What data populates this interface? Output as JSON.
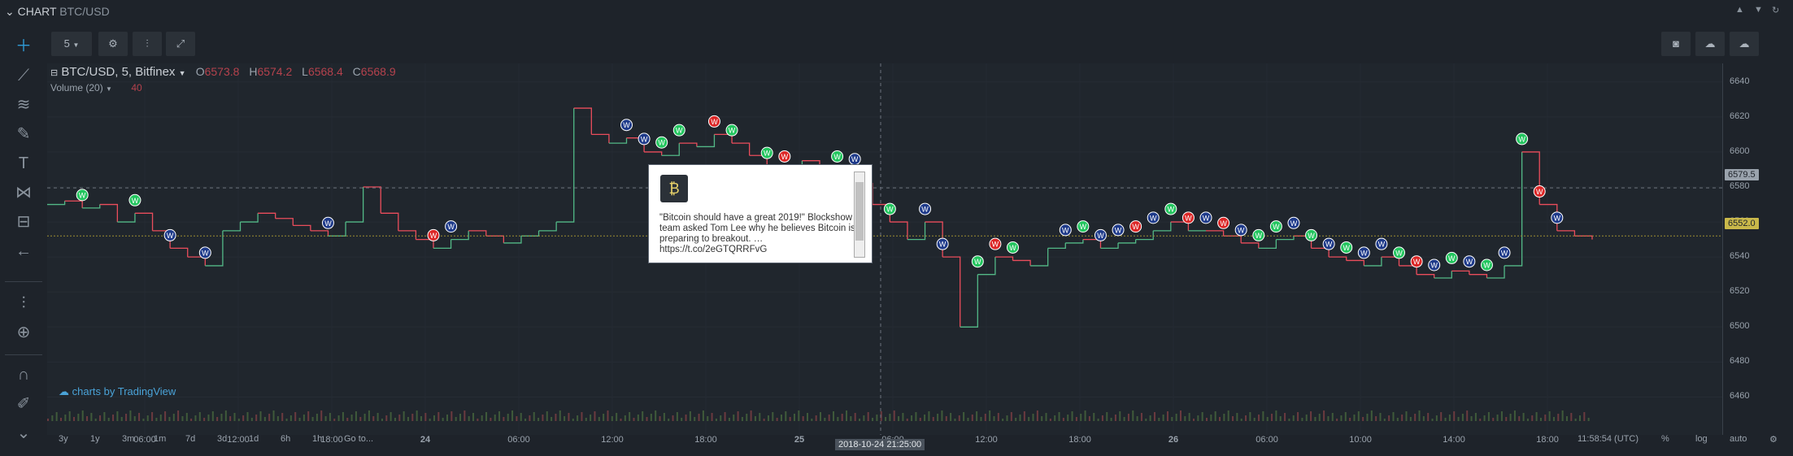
{
  "window": {
    "title": "CHART",
    "pair": "BTC/USD"
  },
  "toolbar": {
    "interval": "5"
  },
  "legend": {
    "symbol": "BTC/USD, 5, Bitfinex",
    "o_label": "O",
    "o": "6573.8",
    "h_label": "H",
    "h": "6574.2",
    "l_label": "L",
    "l": "6568.4",
    "c_label": "C",
    "c": "6568.9",
    "volume_label": "Volume (20)",
    "volume_value": "40"
  },
  "tooltip": {
    "text": "\"Bitcoin should have a great 2019!\" Blockshow team asked Tom Lee why he believes Bitcoin is preparing to breakout. … https://t.co/2eGTQRRFvG"
  },
  "watermark": "charts by TradingView",
  "crosshair": {
    "date_label": "2018-10-24 21:25:00",
    "price_label": "6579.5"
  },
  "last_price_label": "6552.0",
  "bottom": {
    "ranges": [
      "3y",
      "1y",
      "3m",
      "1m",
      "7d",
      "3d",
      "1d",
      "6h",
      "1h",
      "Go to..."
    ],
    "clock": "11:58:54 (UTC)",
    "pct": "%",
    "log": "log",
    "auto": "auto"
  },
  "colors": {
    "up": "#53b987",
    "down": "#eb4d5c",
    "marker_green": "#22c55e",
    "marker_red": "#dc2626",
    "marker_blue": "#1e3a8a",
    "accent": "#2f9bd6"
  },
  "chart_data": {
    "type": "line",
    "title": "BTC/USD, 5, Bitfinex",
    "y_ticks": [
      6640,
      6620,
      6600,
      6580,
      6560,
      6540,
      6520,
      6500,
      6480,
      6460
    ],
    "ylim": [
      6450,
      6645
    ],
    "x_ticks": [
      "06:00",
      "12:00",
      "18:00",
      "24",
      "06:00",
      "12:00",
      "18:00",
      "25",
      "06:00",
      "12:00",
      "18:00",
      "26",
      "06:00",
      "10:00",
      "14:00",
      "18:00"
    ],
    "series": [
      {
        "name": "BTC/USD",
        "values": [
          6570,
          6572,
          6568,
          6570,
          6560,
          6565,
          6555,
          6545,
          6540,
          6535,
          6555,
          6560,
          6565,
          6562,
          6558,
          6555,
          6552,
          6560,
          6580,
          6565,
          6555,
          6550,
          6545,
          6550,
          6555,
          6552,
          6548,
          6552,
          6555,
          6560,
          6625,
          6610,
          6605,
          6608,
          6600,
          6598,
          6605,
          6603,
          6610,
          6605,
          6598,
          6592,
          6590,
          6595,
          6580,
          6590,
          6582,
          6570,
          6560,
          6550,
          6560,
          6540,
          6500,
          6530,
          6540,
          6538,
          6535,
          6545,
          6548,
          6550,
          6545,
          6548,
          6550,
          6555,
          6560,
          6555,
          6555,
          6552,
          6548,
          6545,
          6550,
          6552,
          6545,
          6540,
          6538,
          6535,
          6540,
          6535,
          6530,
          6528,
          6532,
          6530,
          6528,
          6535,
          6600,
          6570,
          6555,
          6552,
          6550
        ]
      }
    ],
    "markers": [
      {
        "i": 2,
        "c": "g"
      },
      {
        "i": 5,
        "c": "g"
      },
      {
        "i": 7,
        "c": "b"
      },
      {
        "i": 9,
        "c": "b"
      },
      {
        "i": 16,
        "c": "b"
      },
      {
        "i": 22,
        "c": "r"
      },
      {
        "i": 23,
        "c": "b"
      },
      {
        "i": 33,
        "c": "b"
      },
      {
        "i": 34,
        "c": "b"
      },
      {
        "i": 35,
        "c": "g"
      },
      {
        "i": 36,
        "c": "g"
      },
      {
        "i": 38,
        "c": "r"
      },
      {
        "i": 39,
        "c": "g"
      },
      {
        "i": 41,
        "c": "g"
      },
      {
        "i": 42,
        "c": "r"
      },
      {
        "i": 45,
        "c": "g"
      },
      {
        "i": 46,
        "c": "g"
      },
      {
        "i": 46,
        "c": "b"
      },
      {
        "i": 48,
        "c": "g"
      },
      {
        "i": 50,
        "c": "b"
      },
      {
        "i": 51,
        "c": "b"
      },
      {
        "i": 53,
        "c": "g"
      },
      {
        "i": 54,
        "c": "r"
      },
      {
        "i": 55,
        "c": "g"
      },
      {
        "i": 58,
        "c": "b"
      },
      {
        "i": 59,
        "c": "g"
      },
      {
        "i": 60,
        "c": "b"
      },
      {
        "i": 61,
        "c": "b"
      },
      {
        "i": 62,
        "c": "r"
      },
      {
        "i": 63,
        "c": "b"
      },
      {
        "i": 64,
        "c": "g"
      },
      {
        "i": 65,
        "c": "r"
      },
      {
        "i": 66,
        "c": "b"
      },
      {
        "i": 67,
        "c": "r"
      },
      {
        "i": 68,
        "c": "b"
      },
      {
        "i": 69,
        "c": "g"
      },
      {
        "i": 70,
        "c": "g"
      },
      {
        "i": 71,
        "c": "b"
      },
      {
        "i": 72,
        "c": "g"
      },
      {
        "i": 73,
        "c": "b"
      },
      {
        "i": 74,
        "c": "g"
      },
      {
        "i": 75,
        "c": "b"
      },
      {
        "i": 76,
        "c": "b"
      },
      {
        "i": 77,
        "c": "g"
      },
      {
        "i": 78,
        "c": "r"
      },
      {
        "i": 79,
        "c": "b"
      },
      {
        "i": 80,
        "c": "g"
      },
      {
        "i": 81,
        "c": "b"
      },
      {
        "i": 82,
        "c": "g"
      },
      {
        "i": 83,
        "c": "b"
      },
      {
        "i": 84,
        "c": "g"
      },
      {
        "i": 85,
        "c": "r"
      },
      {
        "i": 86,
        "c": "b"
      }
    ],
    "grid": true
  }
}
